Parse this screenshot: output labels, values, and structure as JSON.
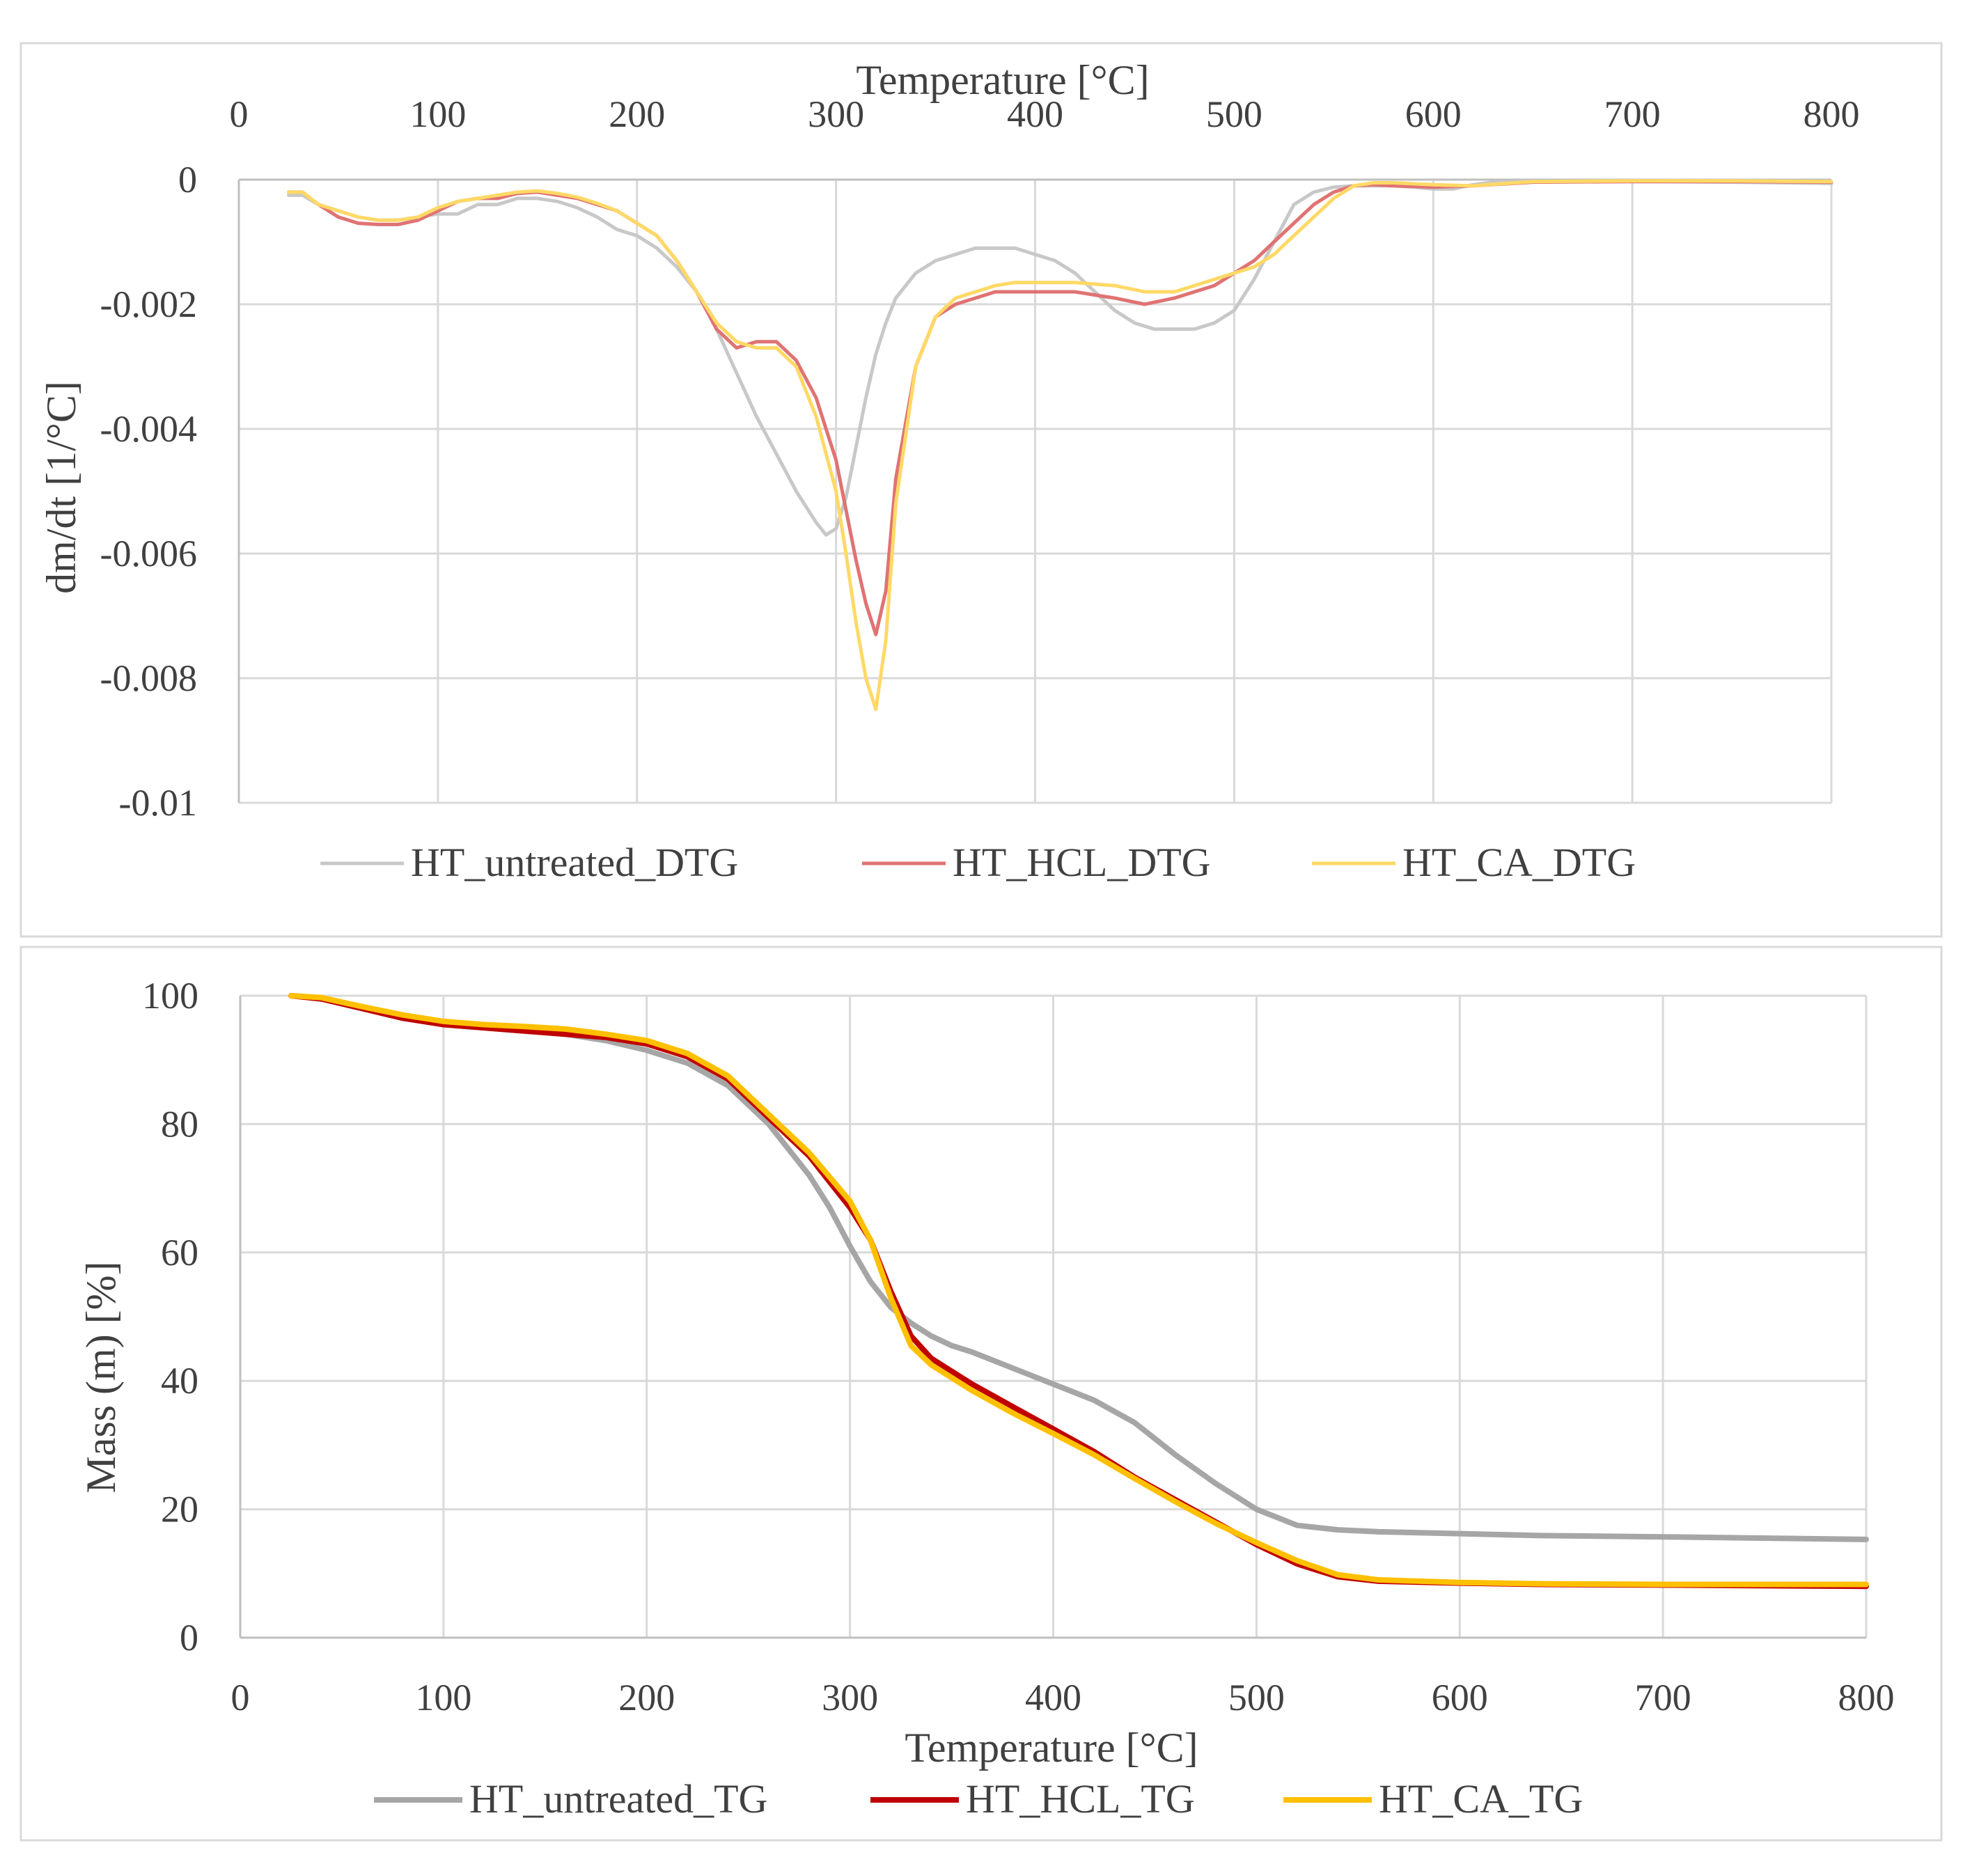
{
  "chart_data": [
    {
      "type": "line",
      "title": "",
      "xlabel": "Temperature [°C]",
      "ylabel": "dm/dt [1/°C]",
      "xlim": [
        0,
        800
      ],
      "ylim": [
        -0.01,
        0
      ],
      "x_ticks": [
        "0",
        "100",
        "200",
        "300",
        "400",
        "500",
        "600",
        "700",
        "800"
      ],
      "y_ticks": [
        "0",
        "-0.002",
        "-0.004",
        "-0.006",
        "-0.008",
        "-0.01"
      ],
      "x_tick_values": [
        0,
        100,
        200,
        300,
        400,
        500,
        600,
        700,
        800
      ],
      "y_tick_values": [
        0,
        -0.002,
        -0.004,
        -0.006,
        -0.008,
        -0.01
      ],
      "x_axis_position": "top",
      "grid": true,
      "legend_position": "bottom",
      "series": [
        {
          "name": "HT_untreated_DTG",
          "color": "#c8c8c8",
          "x": [
            25,
            32,
            40,
            50,
            60,
            70,
            80,
            90,
            100,
            110,
            120,
            130,
            140,
            150,
            160,
            170,
            180,
            190,
            200,
            210,
            220,
            230,
            240,
            250,
            260,
            270,
            280,
            290,
            295,
            300,
            305,
            310,
            315,
            320,
            325,
            330,
            340,
            350,
            360,
            370,
            380,
            390,
            400,
            410,
            420,
            430,
            440,
            450,
            460,
            470,
            480,
            490,
            500,
            510,
            520,
            530,
            540,
            550,
            560,
            570,
            580,
            590,
            600,
            610,
            620,
            630,
            650,
            700,
            750,
            800
          ],
          "y": [
            -0.00025,
            -0.00025,
            -0.0004,
            -0.0005,
            -0.0006,
            -0.00065,
            -0.00065,
            -0.0006,
            -0.00055,
            -0.00055,
            -0.0004,
            -0.0004,
            -0.0003,
            -0.0003,
            -0.00035,
            -0.00045,
            -0.0006,
            -0.0008,
            -0.0009,
            -0.0011,
            -0.0014,
            -0.0018,
            -0.0024,
            -0.0031,
            -0.0038,
            -0.0044,
            -0.005,
            -0.0055,
            -0.0057,
            -0.0056,
            -0.0051,
            -0.0043,
            -0.0035,
            -0.0028,
            -0.0023,
            -0.0019,
            -0.0015,
            -0.0013,
            -0.0012,
            -0.0011,
            -0.0011,
            -0.0011,
            -0.0012,
            -0.0013,
            -0.0015,
            -0.0018,
            -0.0021,
            -0.0023,
            -0.0024,
            -0.0024,
            -0.0024,
            -0.0023,
            -0.0021,
            -0.0016,
            -0.001,
            -0.0004,
            -0.0002,
            -0.00012,
            -0.0001,
            -0.0001,
            -0.0001,
            -0.00012,
            -0.00015,
            -0.00015,
            -8e-05,
            -4e-05,
            -3e-05,
            -3e-05,
            -4e-05,
            -6e-05
          ]
        },
        {
          "name": "HT_HCL_DTG",
          "color": "#e07373",
          "x": [
            25,
            32,
            40,
            50,
            60,
            70,
            80,
            90,
            100,
            110,
            120,
            130,
            140,
            150,
            160,
            170,
            180,
            190,
            200,
            210,
            220,
            230,
            240,
            250,
            260,
            265,
            270,
            280,
            290,
            300,
            305,
            310,
            315,
            320,
            325,
            330,
            340,
            350,
            360,
            370,
            380,
            390,
            400,
            420,
            440,
            455,
            470,
            480,
            490,
            500,
            510,
            520,
            530,
            540,
            550,
            560,
            570,
            580,
            600,
            620,
            650,
            700,
            750,
            800
          ],
          "y": [
            -0.0002,
            -0.0002,
            -0.0004,
            -0.0006,
            -0.0007,
            -0.00072,
            -0.00072,
            -0.00065,
            -0.0005,
            -0.00035,
            -0.0003,
            -0.0003,
            -0.00022,
            -0.0002,
            -0.00025,
            -0.0003,
            -0.0004,
            -0.0005,
            -0.0007,
            -0.0009,
            -0.0013,
            -0.0018,
            -0.0024,
            -0.0027,
            -0.0026,
            -0.0026,
            -0.0026,
            -0.0029,
            -0.0035,
            -0.0045,
            -0.0053,
            -0.0061,
            -0.0068,
            -0.0073,
            -0.0066,
            -0.0048,
            -0.003,
            -0.0022,
            -0.002,
            -0.0019,
            -0.0018,
            -0.0018,
            -0.0018,
            -0.0018,
            -0.0019,
            -0.002,
            -0.0019,
            -0.0018,
            -0.0017,
            -0.0015,
            -0.0013,
            -0.001,
            -0.0007,
            -0.0004,
            -0.0002,
            -0.0001,
            -8e-05,
            -0.0001,
            -0.00012,
            -0.0001,
            -4e-05,
            -3e-05,
            -3e-05,
            -4e-05
          ]
        },
        {
          "name": "HT_CA_DTG",
          "color": "#ffd966",
          "x": [
            25,
            32,
            40,
            50,
            60,
            70,
            80,
            90,
            100,
            110,
            120,
            130,
            140,
            150,
            160,
            170,
            180,
            190,
            200,
            210,
            220,
            230,
            240,
            250,
            260,
            270,
            280,
            290,
            300,
            305,
            310,
            315,
            320,
            325,
            330,
            340,
            350,
            360,
            370,
            380,
            390,
            400,
            420,
            440,
            455,
            470,
            480,
            490,
            500,
            510,
            520,
            530,
            540,
            550,
            560,
            570,
            580,
            600,
            620,
            650,
            700,
            750,
            800
          ],
          "y": [
            -0.0002,
            -0.0002,
            -0.0004,
            -0.0005,
            -0.0006,
            -0.00065,
            -0.00065,
            -0.0006,
            -0.00045,
            -0.00035,
            -0.0003,
            -0.00025,
            -0.0002,
            -0.00018,
            -0.00022,
            -0.00028,
            -0.00038,
            -0.0005,
            -0.0007,
            -0.0009,
            -0.0013,
            -0.0018,
            -0.0023,
            -0.0026,
            -0.0027,
            -0.0027,
            -0.003,
            -0.0038,
            -0.005,
            -0.006,
            -0.0071,
            -0.008,
            -0.0085,
            -0.0074,
            -0.0052,
            -0.003,
            -0.0022,
            -0.0019,
            -0.0018,
            -0.0017,
            -0.00165,
            -0.00165,
            -0.00165,
            -0.0017,
            -0.0018,
            -0.0018,
            -0.0017,
            -0.0016,
            -0.0015,
            -0.0014,
            -0.0012,
            -0.0009,
            -0.0006,
            -0.0003,
            -0.0001,
            -5e-05,
            -5e-05,
            -8e-05,
            -0.0001,
            -3e-05,
            -2e-05,
            -2e-05,
            -3e-05
          ]
        }
      ]
    },
    {
      "type": "line",
      "title": "",
      "xlabel": "Temperature [°C]",
      "ylabel": "Mass (m) [%]",
      "xlim": [
        0,
        800
      ],
      "ylim": [
        0,
        100
      ],
      "x_ticks": [
        "0",
        "100",
        "200",
        "300",
        "400",
        "500",
        "600",
        "700",
        "800"
      ],
      "y_ticks": [
        "0",
        "20",
        "40",
        "60",
        "80",
        "100"
      ],
      "x_tick_values": [
        0,
        100,
        200,
        300,
        400,
        500,
        600,
        700,
        800
      ],
      "y_tick_values": [
        0,
        20,
        40,
        60,
        80,
        100
      ],
      "x_axis_position": "bottom",
      "grid": true,
      "legend_position": "bottom",
      "series": [
        {
          "name": "HT_untreated_TG",
          "color": "#a6a6a6",
          "x": [
            25,
            40,
            60,
            80,
            100,
            120,
            140,
            160,
            180,
            200,
            220,
            240,
            260,
            280,
            290,
            300,
            310,
            320,
            330,
            340,
            350,
            360,
            380,
            400,
            420,
            440,
            460,
            480,
            500,
            520,
            540,
            560,
            600,
            640,
            700,
            800
          ],
          "y": [
            100,
            99.5,
            98,
            96.5,
            95.5,
            95,
            94.5,
            94,
            93,
            91.5,
            89.5,
            86,
            80,
            72,
            67,
            61,
            55.5,
            51.5,
            49,
            47,
            45.5,
            44.5,
            42,
            39.5,
            37,
            33.5,
            28.5,
            24,
            20,
            17.5,
            16.8,
            16.5,
            16.2,
            15.9,
            15.7,
            15.3
          ]
        },
        {
          "name": "HT_HCL_TG",
          "color": "#c00000",
          "x": [
            25,
            40,
            60,
            80,
            100,
            120,
            140,
            160,
            180,
            200,
            220,
            240,
            260,
            280,
            300,
            310,
            320,
            330,
            340,
            350,
            360,
            380,
            400,
            420,
            440,
            460,
            480,
            500,
            520,
            540,
            560,
            600,
            640,
            700,
            800
          ],
          "y": [
            100,
            99.5,
            98,
            96.5,
            95.5,
            95,
            94.5,
            94,
            93.5,
            92.5,
            90.5,
            87,
            81,
            75,
            67,
            62,
            54,
            47,
            43.5,
            41.5,
            39.5,
            36,
            32.5,
            29,
            25,
            21.5,
            18,
            14.5,
            11.5,
            9.5,
            8.8,
            8.5,
            8.3,
            8.2,
            8.0
          ]
        },
        {
          "name": "HT_CA_TG",
          "color": "#ffc000",
          "x": [
            25,
            40,
            60,
            80,
            100,
            120,
            140,
            160,
            180,
            200,
            220,
            240,
            260,
            280,
            300,
            310,
            320,
            330,
            340,
            350,
            360,
            380,
            400,
            420,
            440,
            460,
            480,
            500,
            520,
            540,
            560,
            600,
            640,
            700,
            800
          ],
          "y": [
            100,
            99.7,
            98.3,
            97,
            96,
            95.5,
            95.2,
            94.8,
            94,
            93,
            91,
            87.5,
            81.5,
            75.5,
            68,
            62,
            53,
            45.5,
            42.5,
            40.5,
            38.5,
            35,
            31.8,
            28.5,
            24.8,
            21.2,
            17.8,
            14.8,
            12,
            9.8,
            9.0,
            8.6,
            8.4,
            8.3,
            8.3
          ]
        }
      ]
    }
  ]
}
